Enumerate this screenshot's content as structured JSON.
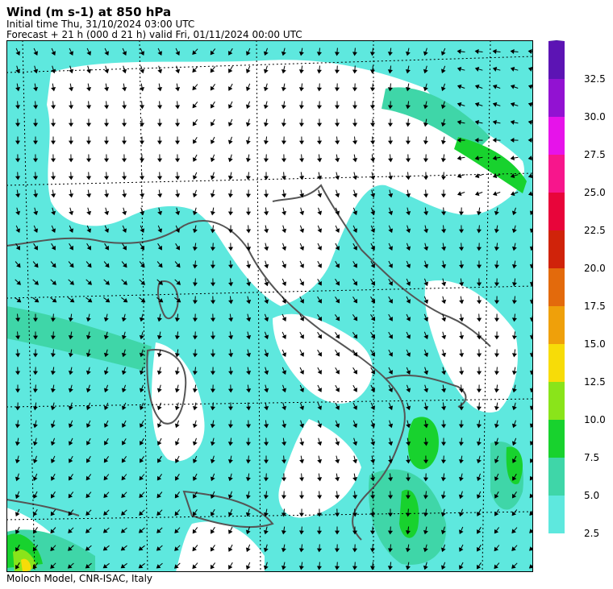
{
  "header": {
    "title": "Wind (m s-1) at 850 hPa",
    "initial_time": "Initial time  Thu, 31/10/2024  03:00 UTC",
    "forecast": "Forecast  +  21 h  (000 d 21 h)  valid Fri, 01/11/2024 00:00 UTC"
  },
  "footer": {
    "credit": "Moloch Model, CNR-ISAC, Italy"
  },
  "colorbar": {
    "levels": [
      "2.5",
      "5.0",
      "7.5",
      "10.0",
      "12.5",
      "15.0",
      "17.5",
      "20.0",
      "22.5",
      "25.0",
      "27.5",
      "30.0",
      "32.5"
    ],
    "colors": [
      "#5ee8de",
      "#3fd6a8",
      "#18d22e",
      "#8ae41a",
      "#f7dc08",
      "#efa00a",
      "#e36a0c",
      "#d0230a",
      "#e8053a",
      "#f7168c",
      "#e613ea",
      "#9212d2",
      "#5c14b4",
      "#3a0a98"
    ]
  },
  "map": {
    "water_color": "#5ee8de",
    "land_color": "#ffffff"
  }
}
